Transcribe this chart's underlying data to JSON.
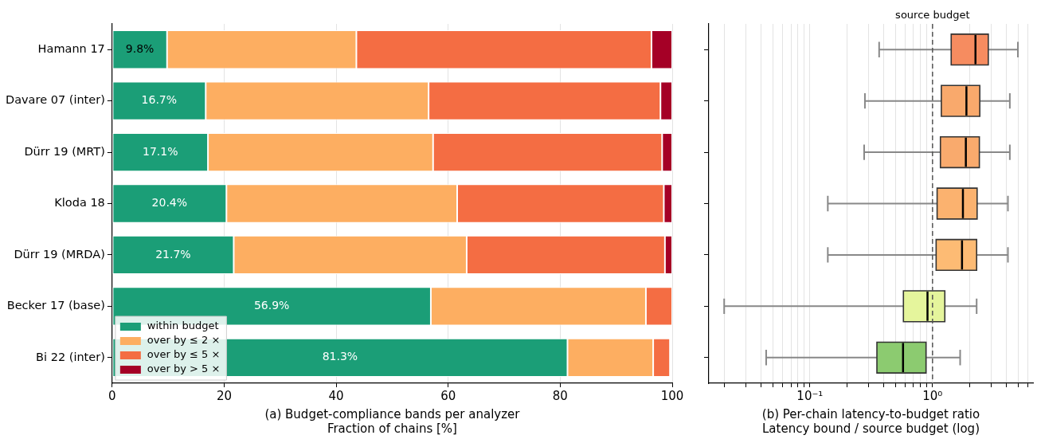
{
  "chart_data": [
    {
      "type": "bar",
      "orientation": "horizontal",
      "stacked": true,
      "categories": [
        "Hamann 17",
        "Davare 07 (inter)",
        "Dürr 19 (MRT)",
        "Kloda 18",
        "Dürr 19 (MRDA)",
        "Becker 17 (base)",
        "Bi 22 (inter)"
      ],
      "series": [
        {
          "name": "within budget",
          "color": "#1b9e77",
          "values": [
            9.8,
            16.7,
            17.1,
            20.4,
            21.7,
            56.9,
            81.3
          ],
          "value_labels": [
            "9.8%",
            "16.7%",
            "17.1%",
            "20.4%",
            "21.7%",
            "56.9%",
            "81.3%"
          ]
        },
        {
          "name": "over by ≤ 2 ×",
          "color": "#fdae61",
          "values": [
            33.8,
            39.8,
            40.2,
            41.2,
            41.6,
            38.4,
            15.3
          ]
        },
        {
          "name": "over by ≤ 5 ×",
          "color": "#f46d43",
          "values": [
            52.7,
            41.4,
            40.9,
            36.9,
            35.4,
            4.7,
            3.0
          ]
        },
        {
          "name": "over by > 5 ×",
          "color": "#a50026",
          "values": [
            3.7,
            2.1,
            1.8,
            1.5,
            1.3,
            0,
            0
          ]
        }
      ],
      "xlim": [
        0,
        100
      ],
      "xticks": [
        0,
        20,
        40,
        60,
        80,
        100
      ],
      "xlabel": "(a) Budget-compliance bands per analyzer\nFraction of chains [%]",
      "grid": "x",
      "legend": "bottom left"
    },
    {
      "type": "box",
      "orientation": "horizontal",
      "categories": [
        null,
        null,
        null,
        null,
        null,
        null,
        null
      ],
      "boxes": [
        {
          "low": 0.367,
          "q1": 1.42,
          "median": 2.24,
          "q3": 2.85,
          "high": 4.97
        },
        {
          "low": 0.281,
          "q1": 1.18,
          "median": 1.89,
          "q3": 2.43,
          "high": 4.27
        },
        {
          "low": 0.277,
          "q1": 1.16,
          "median": 1.87,
          "q3": 2.41,
          "high": 4.27
        },
        {
          "low": 0.14,
          "q1": 1.09,
          "median": 1.77,
          "q3": 2.31,
          "high": 4.12
        },
        {
          "low": 0.14,
          "q1": 1.07,
          "median": 1.74,
          "q3": 2.29,
          "high": 4.12
        },
        {
          "low": 0.02,
          "q1": 0.579,
          "median": 0.91,
          "q3": 1.26,
          "high": 2.29
        },
        {
          "low": 0.044,
          "q1": 0.352,
          "median": 0.575,
          "q3": 0.885,
          "high": 1.68
        }
      ],
      "colors": [
        "#f68c60",
        "#f9a96c",
        "#f9aa6d",
        "#fbb26f",
        "#fdbb74",
        "#e5f59c",
        "#8ccb70"
      ],
      "log": "x",
      "xlim": [
        0.015,
        6.6
      ],
      "xticks": [
        {
          "value": 0.02,
          "label": null
        },
        {
          "value": 0.03,
          "label": null
        },
        {
          "value": 0.04,
          "label": null
        },
        {
          "value": 0.05,
          "label": null
        },
        {
          "value": 0.06,
          "label": null
        },
        {
          "value": 0.07,
          "label": null
        },
        {
          "value": 0.08,
          "label": null
        },
        {
          "value": 0.09,
          "label": null
        },
        {
          "value": 0.1,
          "label": "10⁻¹"
        },
        {
          "value": 0.2,
          "label": null
        },
        {
          "value": 0.3,
          "label": null
        },
        {
          "value": 0.4,
          "label": null
        },
        {
          "value": 0.5,
          "label": null
        },
        {
          "value": 0.6,
          "label": null
        },
        {
          "value": 0.7,
          "label": null
        },
        {
          "value": 0.8,
          "label": null
        },
        {
          "value": 0.9,
          "label": null
        },
        {
          "value": 1,
          "label": "10⁰"
        },
        {
          "value": 2,
          "label": null
        },
        {
          "value": 3,
          "label": null
        },
        {
          "value": 4,
          "label": null
        },
        {
          "value": 5,
          "label": null
        },
        {
          "value": 6,
          "label": null
        }
      ],
      "xlabel": "(b) Per-chain latency-to-budget ratio\nLatency bound / source budget (log)",
      "grid": "x",
      "tick_labels": "x",
      "ref_lines": [
        {
          "axis": "x",
          "value": 1,
          "label": "source budget",
          "line_style": "dashed",
          "color": "#555555"
        }
      ]
    }
  ]
}
